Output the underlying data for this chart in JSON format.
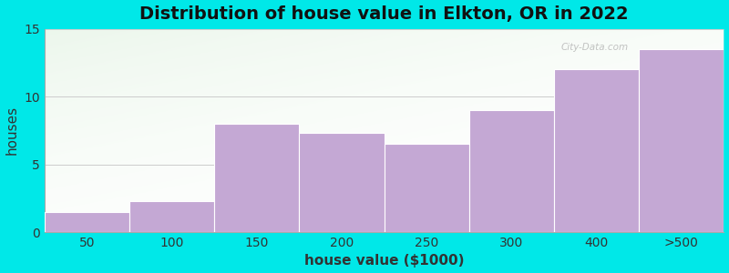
{
  "categories": [
    "50",
    "100",
    "150",
    "200",
    "250",
    "300",
    "400",
    ">500"
  ],
  "values": [
    1.5,
    2.3,
    8.0,
    7.3,
    6.5,
    9.0,
    12.0,
    13.5
  ],
  "bar_color": "#c4a8d4",
  "bar_edge_color": "#ffffff",
  "title": "Distribution of house value in Elkton, OR in 2022",
  "xlabel": "house value ($1000)",
  "ylabel": "houses",
  "ylim": [
    0,
    15
  ],
  "yticks": [
    0,
    5,
    10,
    15
  ],
  "background_outer": "#00e8e8",
  "title_fontsize": 14,
  "axis_label_fontsize": 11,
  "tick_fontsize": 10,
  "watermark": "City-Data.com"
}
